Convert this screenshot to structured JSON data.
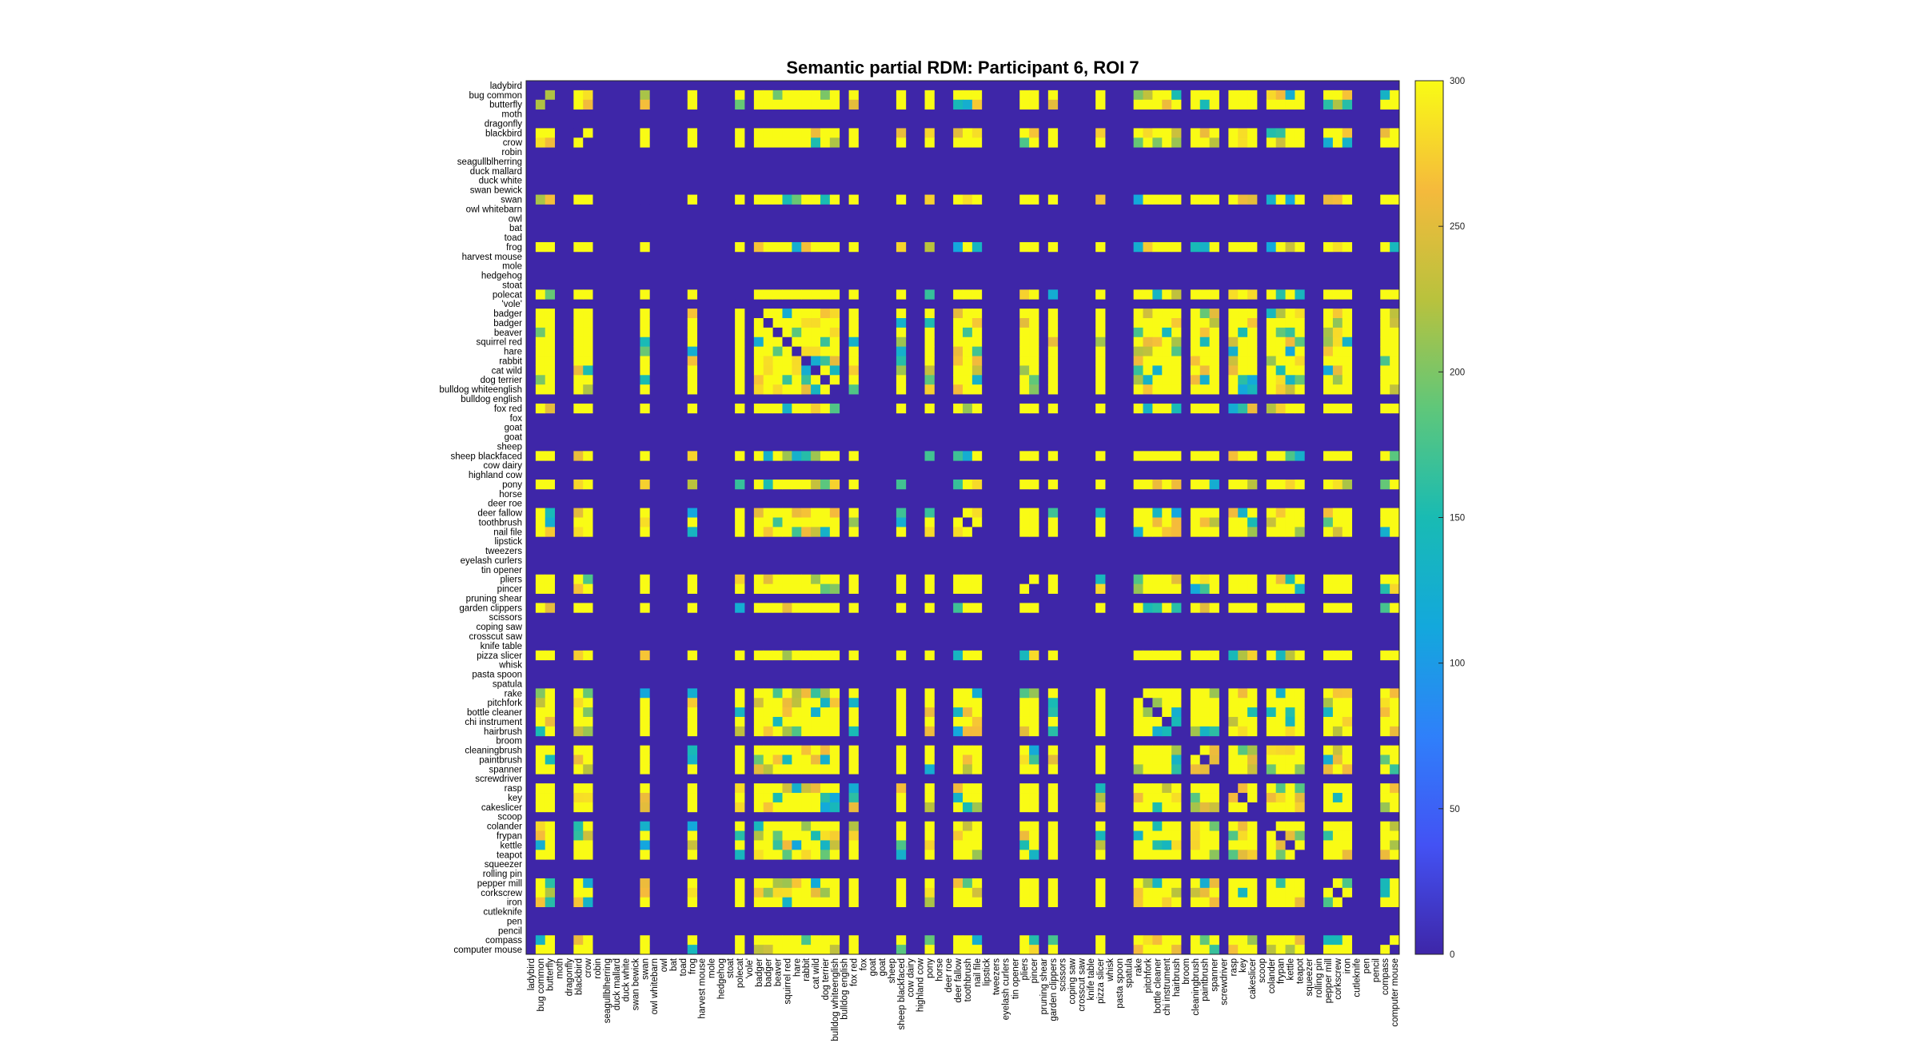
{
  "chart_data": {
    "type": "heatmap",
    "title": "Semantic partial RDM: Participant 6, ROI 7",
    "labels": [
      "ladybird",
      "bug common",
      "butterfly",
      "moth",
      "dragonfly",
      "blackbird",
      "crow",
      "robin",
      "seagullblherring",
      "duck mallard",
      "duck white",
      "swan bewick",
      "swan",
      "owl whitebarn",
      "owl",
      "bat",
      "toad",
      "frog",
      "harvest mouse",
      "mole",
      "hedgehog",
      "stoat",
      "polecat",
      "'vole'",
      "badger",
      "badger",
      "beaver",
      "squirrel red",
      "hare",
      "rabbit",
      "cat wild",
      "dog terrier",
      "bulldog whiteenglish",
      "bulldog english",
      "fox red",
      "fox",
      "goat",
      "goat",
      "sheep",
      "sheep blackfaced",
      "cow dairy",
      "highland cow",
      "pony",
      "horse",
      "deer roe",
      "deer fallow",
      "toothbrush",
      "nail file",
      "lipstick",
      "tweezers",
      "eyelash curlers",
      "tin opener",
      "pliers",
      "pincer",
      "pruning shear",
      "garden clippers",
      "scissors",
      "coping saw",
      "crosscut saw",
      "knife table",
      "pizza slicer",
      "whisk",
      "pasta spoon",
      "spatula",
      "rake",
      "pitchfork",
      "bottle cleaner",
      "chi instrument",
      "hairbrush",
      "broom",
      "cleaningbrush",
      "paintbrush",
      "spanner",
      "screwdriver",
      "rasp",
      "key",
      "cakeslicer",
      "scoop",
      "colander",
      "frypan",
      "kettle",
      "teapot",
      "squeezer",
      "rolling pin",
      "pepper mill",
      "corkscrew",
      "iron",
      "cutleknife",
      "pen",
      "pencil",
      "compass",
      "computer mouse"
    ],
    "active_items": [
      1,
      2,
      5,
      6,
      12,
      17,
      22,
      24,
      25,
      26,
      27,
      28,
      29,
      30,
      31,
      32,
      34,
      39,
      42,
      45,
      46,
      47,
      52,
      53,
      55,
      60,
      64,
      65,
      66,
      67,
      68,
      70,
      71,
      72,
      74,
      75,
      76,
      78,
      79,
      80,
      81,
      84,
      85,
      86,
      90,
      91
    ],
    "clim": [
      0,
      300
    ],
    "colorbar_ticks": [
      0,
      50,
      100,
      150,
      200,
      250,
      300
    ],
    "colormap": "parula",
    "colors": {
      "background": "#ffffff",
      "empty_cell": "#3e26a8",
      "frame": "#262626"
    }
  }
}
